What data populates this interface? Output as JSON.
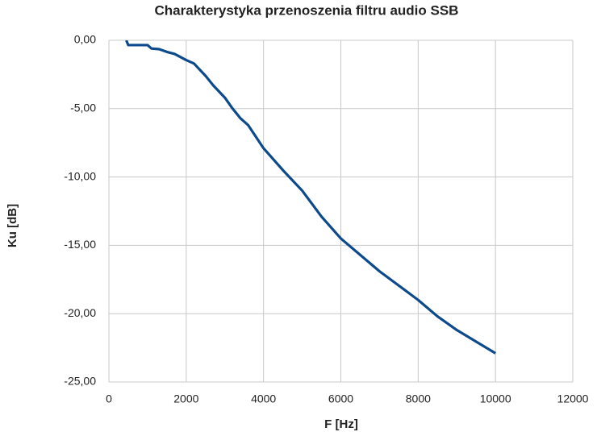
{
  "chart_data": {
    "type": "line",
    "title": "Charakterystyka przenoszenia filtru audio SSB",
    "x_label": "F [Hz]",
    "y_label": "Ku [dB]",
    "x": [
      450,
      500,
      1000,
      1100,
      1300,
      1500,
      1700,
      2000,
      2200,
      2500,
      2700,
      3000,
      3200,
      3400,
      3600,
      4000,
      4500,
      5000,
      5500,
      6000,
      7000,
      8000,
      8500,
      9000,
      10000
    ],
    "series": [
      {
        "name": "Ku",
        "color": "#0d4a8c",
        "values": [
          0,
          -0.35,
          -0.35,
          -0.6,
          -0.65,
          -0.85,
          -1.0,
          -1.45,
          -1.7,
          -2.6,
          -3.3,
          -4.2,
          -5.0,
          -5.7,
          -6.2,
          -7.9,
          -9.5,
          -11.0,
          -12.9,
          -14.5,
          -16.9,
          -19.0,
          -20.2,
          -21.2,
          -22.9
        ]
      }
    ],
    "xlim": [
      0,
      12000
    ],
    "xticks": [
      0,
      2000,
      4000,
      6000,
      8000,
      10000,
      12000
    ],
    "ylim": [
      -25,
      0
    ],
    "yticks": [
      {
        "value": 0,
        "label": "0,00"
      },
      {
        "value": -5,
        "label": "-5,00"
      },
      {
        "value": -10,
        "label": "-10,00"
      },
      {
        "value": -15,
        "label": "-15,00"
      },
      {
        "value": -20,
        "label": "-20,00"
      },
      {
        "value": -25,
        "label": "-25,00"
      }
    ],
    "grid": true
  }
}
